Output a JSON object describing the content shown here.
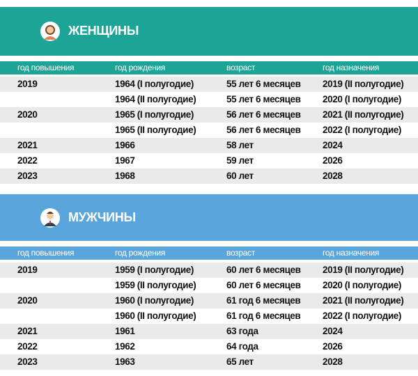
{
  "women": {
    "title": "ЖЕНЩИНЫ",
    "headers": [
      "год повышения",
      "год рождения",
      "возраст",
      "год назначения"
    ],
    "rows": [
      [
        "2019",
        "1964 (I полугодие)",
        "55 лет 6 месяцев",
        "2019 (II полугодие)"
      ],
      [
        null,
        "1964 (II полугодие)",
        "55 лет 6 месяцев",
        "2020 (I полугодие)"
      ],
      [
        "2020",
        "1965 (I полугодие)",
        "56 лет 6 месяцев",
        "2021 (II полугодие)"
      ],
      [
        null,
        "1965 (II полугодие)",
        "56 лет 6 месяцев",
        "2022 (I полугодие)"
      ],
      [
        "2021",
        "1966",
        "58 лет",
        "2024"
      ],
      [
        "2022",
        "1967",
        "59 лет",
        "2026"
      ],
      [
        "2023",
        "1968",
        "60 лет",
        "2028"
      ]
    ]
  },
  "men": {
    "title": "МУЖЧИНЫ",
    "headers": [
      "год повышения",
      "год рождения",
      "возраст",
      "год назначения"
    ],
    "rows": [
      [
        "2019",
        "1959 (I полугодие)",
        "60 лет 6 месяцев",
        "2019 (II полугодие)"
      ],
      [
        null,
        "1959 (II полугодие)",
        "60 лет 6 месяцев",
        "2020 (I полугодие)"
      ],
      [
        "2020",
        "1960 (I полугодие)",
        "61 год 6 месяцев",
        "2021 (II полугодие)"
      ],
      [
        null,
        "1960 (II полугодие)",
        "61 год 6 месяцев",
        "2022 (I полугодие)"
      ],
      [
        "2021",
        "1961",
        "63 года",
        "2024"
      ],
      [
        "2022",
        "1962",
        "64 года",
        "2026"
      ],
      [
        "2023",
        "1963",
        "65 лет",
        "2028"
      ]
    ]
  }
}
